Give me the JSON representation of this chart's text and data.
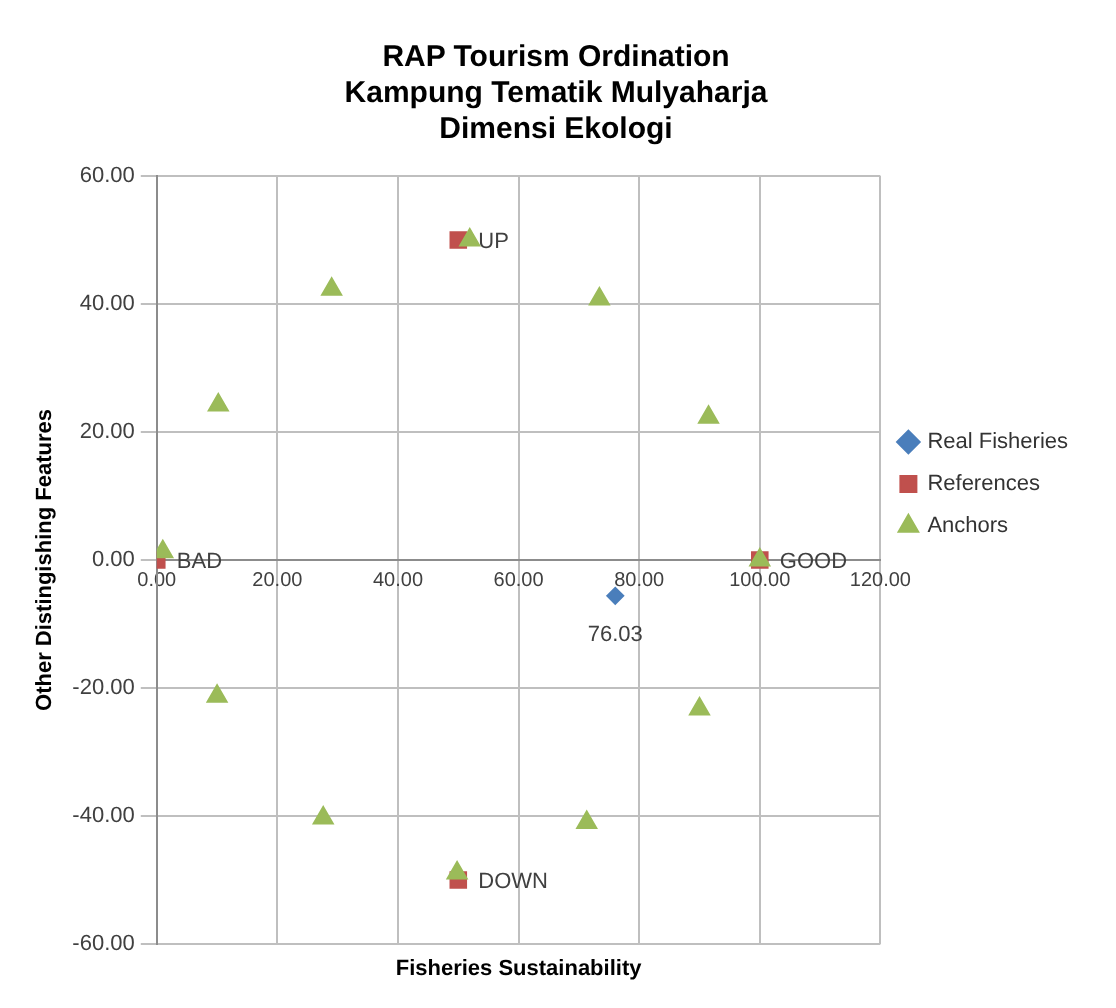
{
  "chart_data": {
    "type": "scatter",
    "title": "RAP Tourism Ordination\nKampung Tematik Mulyaharja\nDimensi Ekologi",
    "xlabel": "Fisheries Sustainability",
    "ylabel": "Other Distingishing Features",
    "xlim": [
      0,
      120
    ],
    "xticks": [
      {
        "value": 0,
        "label": "0.00"
      },
      {
        "value": 20,
        "label": "20.00"
      },
      {
        "value": 40,
        "label": "40.00"
      },
      {
        "value": 60,
        "label": "60.00"
      },
      {
        "value": 80,
        "label": "80.00"
      },
      {
        "value": 100,
        "label": "100.00"
      },
      {
        "value": 120,
        "label": "120.00"
      }
    ],
    "ylim": [
      -60,
      60
    ],
    "yticks": [
      {
        "value": -60,
        "label": "-60.00"
      },
      {
        "value": -40,
        "label": "-40.00"
      },
      {
        "value": -20,
        "label": "-20.00"
      },
      {
        "value": 0,
        "label": "0.00"
      },
      {
        "value": 20,
        "label": "20.00"
      },
      {
        "value": 40,
        "label": "40.00"
      },
      {
        "value": 60,
        "label": "60.00"
      }
    ],
    "grid": true,
    "legend": "right",
    "series": [
      {
        "name": "Real Fisheries",
        "color": "#4a7ebb",
        "marker": "diamond",
        "x": [
          76.03
        ],
        "values": [
          -5.6
        ]
      },
      {
        "name": "References",
        "color": "#c0504d",
        "marker": "square",
        "x": [
          0,
          100,
          50,
          50
        ],
        "values": [
          0,
          0,
          50,
          -50
        ]
      },
      {
        "name": "Anchors",
        "color": "#9bbb59",
        "marker": "triangle",
        "x": [
          1,
          10.2,
          29,
          51.9,
          73.4,
          91.5,
          100,
          90,
          71.3,
          49.8,
          27.6,
          10
        ],
        "values": [
          1.3,
          24.2,
          42.3,
          50,
          40.8,
          22.3,
          0,
          -23.3,
          -41,
          -48.9,
          -40.3,
          -21.3
        ]
      }
    ],
    "annotations": [
      {
        "text": "BAD",
        "x": 0,
        "y": 0
      },
      {
        "text": "GOOD",
        "x": 100,
        "y": 0
      },
      {
        "text": "UP",
        "x": 50,
        "y": 50
      },
      {
        "text": "DOWN",
        "x": 50,
        "y": -50
      },
      {
        "text": "76.03",
        "x": 76.03,
        "y": -5.6
      }
    ]
  }
}
